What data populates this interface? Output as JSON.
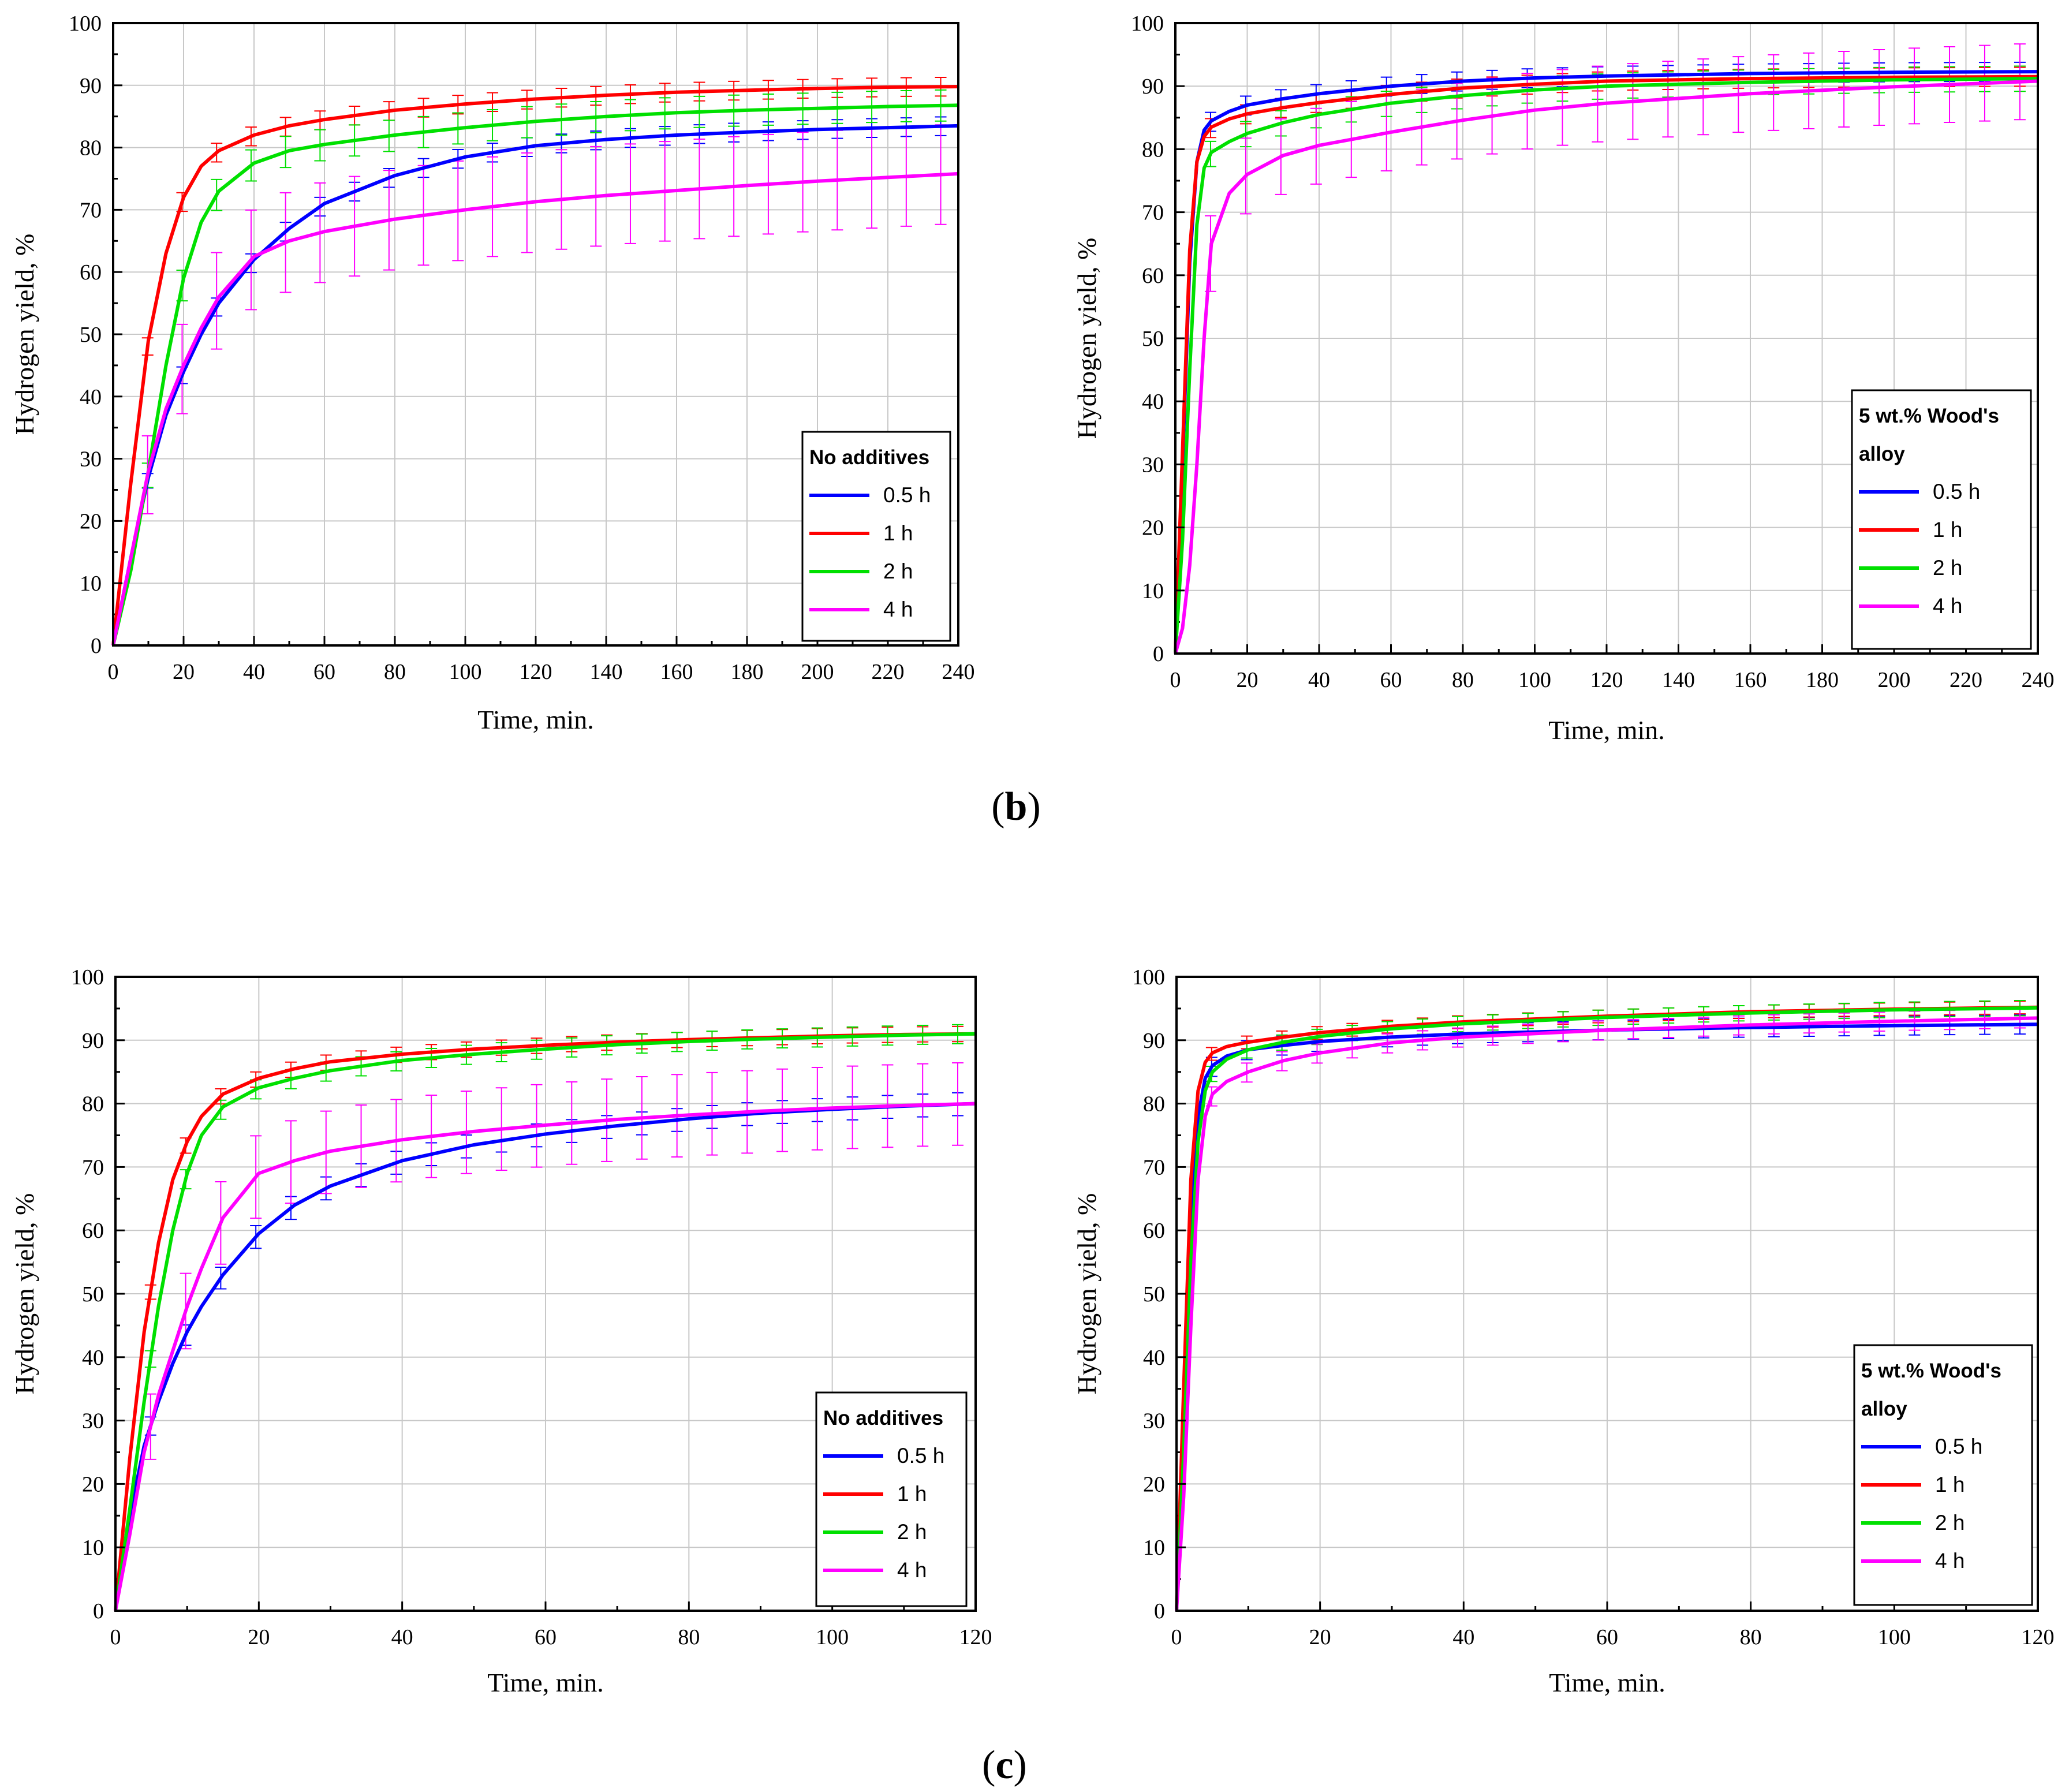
{
  "panel_labels": {
    "b": "b",
    "c": "c"
  },
  "chart_data": [
    {
      "id": "b-left",
      "type": "line",
      "xlabel": "Time, min.",
      "ylabel": "Hydrogen yield, %",
      "xlim": [
        0,
        240
      ],
      "ylim": [
        0,
        100
      ],
      "xticks": [
        0,
        20,
        40,
        60,
        80,
        100,
        120,
        140,
        160,
        180,
        200,
        220,
        240
      ],
      "yticks": [
        0,
        10,
        20,
        30,
        40,
        50,
        60,
        70,
        80,
        90,
        100
      ],
      "grid": true,
      "legend": {
        "title": "No additives",
        "placement": "lower-right"
      },
      "series": [
        {
          "name": "0.5 h",
          "color": "#0000ff",
          "x": [
            0,
            5,
            10,
            15,
            20,
            25,
            30,
            40,
            50,
            60,
            80,
            100,
            120,
            140,
            160,
            180,
            200,
            220,
            240
          ],
          "y": [
            0,
            14,
            27,
            37,
            44,
            50,
            55,
            62,
            67,
            71,
            75.5,
            78.5,
            80.3,
            81.3,
            82,
            82.5,
            82.9,
            83.2,
            83.5
          ],
          "err": 1.5
        },
        {
          "name": "1 h",
          "color": "#ff0000",
          "x": [
            0,
            5,
            10,
            15,
            20,
            25,
            30,
            40,
            50,
            60,
            80,
            100,
            120,
            140,
            160,
            180,
            200,
            220,
            240
          ],
          "y": [
            0,
            26,
            49,
            63,
            72,
            77,
            79.5,
            82,
            83.5,
            84.5,
            86,
            87,
            87.8,
            88.4,
            88.9,
            89.2,
            89.5,
            89.7,
            89.8
          ],
          "err": 1.5
        },
        {
          "name": "2 h",
          "color": "#00e000",
          "x": [
            0,
            5,
            10,
            15,
            20,
            25,
            30,
            40,
            50,
            60,
            80,
            100,
            120,
            140,
            160,
            180,
            200,
            220,
            240
          ],
          "y": [
            0,
            12,
            28,
            45,
            59,
            68,
            73,
            77.5,
            79.5,
            80.5,
            82,
            83.2,
            84.2,
            85,
            85.6,
            86,
            86.3,
            86.6,
            86.8
          ],
          "err": 2.5
        },
        {
          "name": "4 h",
          "color": "#ff00ff",
          "x": [
            0,
            5,
            10,
            15,
            20,
            25,
            30,
            40,
            50,
            60,
            80,
            100,
            120,
            140,
            160,
            180,
            200,
            220,
            240
          ],
          "y": [
            0,
            14,
            28,
            38,
            45,
            51,
            56,
            62.5,
            65,
            66.5,
            68.5,
            70,
            71.3,
            72.3,
            73.1,
            73.9,
            74.6,
            75.2,
            75.8
          ],
          "err": 8
        }
      ]
    },
    {
      "id": "b-right",
      "type": "line",
      "xlabel": "Time, min.",
      "ylabel": "Hydrogen yield, %",
      "xlim": [
        0,
        240
      ],
      "ylim": [
        0,
        100
      ],
      "xticks": [
        0,
        20,
        40,
        60,
        80,
        100,
        120,
        140,
        160,
        180,
        200,
        220,
        240
      ],
      "yticks": [
        0,
        10,
        20,
        30,
        40,
        50,
        60,
        70,
        80,
        90,
        100
      ],
      "grid": true,
      "legend": {
        "title": "5 wt.% Wood's alloy",
        "placement": "lower-right"
      },
      "series": [
        {
          "name": "0.5 h",
          "color": "#0000ff",
          "x": [
            0,
            2,
            4,
            6,
            8,
            10,
            15,
            20,
            30,
            40,
            60,
            80,
            100,
            120,
            160,
            200,
            240
          ],
          "y": [
            0,
            30,
            62,
            78,
            83,
            84.5,
            86,
            87,
            88,
            88.8,
            90,
            90.8,
            91.3,
            91.6,
            92,
            92.2,
            92.3
          ],
          "err": 1.5
        },
        {
          "name": "1 h",
          "color": "#ff0000",
          "x": [
            0,
            2,
            4,
            6,
            8,
            10,
            15,
            20,
            30,
            40,
            60,
            80,
            100,
            120,
            160,
            200,
            240
          ],
          "y": [
            0,
            32,
            64,
            78,
            82,
            83.5,
            84.8,
            85.6,
            86.6,
            87.4,
            88.7,
            89.7,
            90.3,
            90.8,
            91.2,
            91.4,
            91.5
          ],
          "err": 1.5
        },
        {
          "name": "2 h",
          "color": "#00e000",
          "x": [
            0,
            2,
            4,
            6,
            8,
            10,
            15,
            20,
            30,
            40,
            60,
            80,
            100,
            120,
            160,
            200,
            240
          ],
          "y": [
            0,
            18,
            45,
            68,
            77,
            79.5,
            81.2,
            82.5,
            84.2,
            85.5,
            87.3,
            88.5,
            89.4,
            90,
            90.6,
            91,
            91.2
          ],
          "err": 2
        },
        {
          "name": "4 h",
          "color": "#ff00ff",
          "x": [
            0,
            2,
            4,
            6,
            8,
            10,
            15,
            20,
            30,
            40,
            60,
            80,
            100,
            120,
            160,
            200,
            240
          ],
          "y": [
            0,
            4,
            14,
            30,
            50,
            65,
            73,
            76,
            79,
            80.6,
            82.7,
            84.6,
            86.2,
            87.3,
            88.8,
            89.9,
            90.8
          ],
          "err": 6
        }
      ]
    },
    {
      "id": "c-left",
      "type": "line",
      "xlabel": "Time, min.",
      "ylabel": "Hydrogen yield, %",
      "xlim": [
        0,
        120
      ],
      "ylim": [
        0,
        100
      ],
      "xticks": [
        0,
        20,
        40,
        60,
        80,
        100,
        120
      ],
      "yticks": [
        0,
        10,
        20,
        30,
        40,
        50,
        60,
        70,
        80,
        90,
        100
      ],
      "grid": true,
      "legend": {
        "title": "No additives",
        "placement": "lower-right"
      },
      "series": [
        {
          "name": "0.5 h",
          "color": "#0000ff",
          "x": [
            0,
            2,
            4,
            6,
            8,
            10,
            12,
            15,
            20,
            25,
            30,
            40,
            50,
            60,
            70,
            80,
            90,
            100,
            110,
            120
          ],
          "y": [
            0,
            15,
            26,
            33,
            39,
            44,
            48,
            53,
            59.5,
            64,
            67,
            71,
            73.5,
            75.2,
            76.5,
            77.6,
            78.5,
            79.1,
            79.6,
            80
          ],
          "err": 1.8
        },
        {
          "name": "1 h",
          "color": "#ff0000",
          "x": [
            0,
            2,
            4,
            6,
            8,
            10,
            12,
            15,
            20,
            25,
            30,
            40,
            50,
            60,
            70,
            80,
            90,
            100,
            110,
            120
          ],
          "y": [
            0,
            24,
            44,
            58,
            68,
            74,
            78,
            81.5,
            84,
            85.5,
            86.6,
            87.8,
            88.6,
            89.2,
            89.7,
            90.1,
            90.4,
            90.7,
            90.9,
            91
          ],
          "err": 1.2
        },
        {
          "name": "2 h",
          "color": "#00e000",
          "x": [
            0,
            2,
            4,
            6,
            8,
            10,
            12,
            15,
            20,
            25,
            30,
            40,
            50,
            60,
            70,
            80,
            90,
            100,
            110,
            120
          ],
          "y": [
            0,
            16,
            33,
            48,
            60,
            69,
            75,
            79.5,
            82.5,
            84,
            85.2,
            86.8,
            87.8,
            88.6,
            89.3,
            89.8,
            90.2,
            90.5,
            90.8,
            91
          ],
          "err": 1.5
        },
        {
          "name": "4 h",
          "color": "#ff00ff",
          "x": [
            0,
            2,
            4,
            6,
            8,
            10,
            12,
            15,
            20,
            25,
            30,
            40,
            50,
            60,
            70,
            80,
            90,
            100,
            110,
            120
          ],
          "y": [
            0,
            12,
            25,
            34,
            41,
            48,
            54,
            62,
            69,
            71,
            72.5,
            74.3,
            75.6,
            76.6,
            77.5,
            78.2,
            78.8,
            79.3,
            79.7,
            80
          ],
          "err": 6.5
        }
      ]
    },
    {
      "id": "c-right",
      "type": "line",
      "xlabel": "Time, min.",
      "ylabel": "Hydrogen yield, %",
      "xlim": [
        0,
        120
      ],
      "ylim": [
        0,
        100
      ],
      "xticks": [
        0,
        20,
        40,
        60,
        80,
        100,
        120
      ],
      "yticks": [
        0,
        10,
        20,
        30,
        40,
        50,
        60,
        70,
        80,
        90,
        100
      ],
      "grid": true,
      "legend": {
        "title": "5 wt.% Wood's alloy",
        "placement": "lower-right"
      },
      "series": [
        {
          "name": "0.5 h",
          "color": "#0000ff",
          "x": [
            0,
            1,
            2,
            3,
            4,
            5,
            7,
            10,
            15,
            20,
            30,
            40,
            60,
            80,
            100,
            120
          ],
          "y": [
            0,
            30,
            62,
            78,
            84,
            86,
            87.5,
            88.5,
            89.2,
            89.8,
            90.5,
            91,
            91.6,
            92,
            92.3,
            92.5
          ],
          "err": 1.5
        },
        {
          "name": "1 h",
          "color": "#ff0000",
          "x": [
            0,
            1,
            2,
            3,
            4,
            5,
            7,
            10,
            15,
            20,
            30,
            40,
            60,
            80,
            100,
            120
          ],
          "y": [
            0,
            35,
            68,
            82,
            86.5,
            88,
            89,
            89.7,
            90.5,
            91.2,
            92.2,
            92.9,
            93.8,
            94.5,
            94.9,
            95.2
          ],
          "err": 1
        },
        {
          "name": "2 h",
          "color": "#00e000",
          "x": [
            0,
            1,
            2,
            3,
            4,
            5,
            7,
            10,
            15,
            20,
            30,
            40,
            60,
            80,
            100,
            120
          ],
          "y": [
            0,
            25,
            55,
            74,
            82,
            85,
            87,
            88.5,
            89.7,
            90.6,
            91.8,
            92.6,
            93.6,
            94.3,
            94.8,
            95.1
          ],
          "err": 1.2
        },
        {
          "name": "4 h",
          "color": "#ff00ff",
          "x": [
            0,
            1,
            2,
            3,
            4,
            5,
            7,
            10,
            15,
            20,
            30,
            40,
            60,
            80,
            100,
            120
          ],
          "y": [
            0,
            18,
            45,
            68,
            78,
            81.5,
            83.5,
            85,
            86.8,
            88,
            89.6,
            90.5,
            91.6,
            92.4,
            93,
            93.5
          ],
          "err": 1.5
        }
      ]
    }
  ]
}
